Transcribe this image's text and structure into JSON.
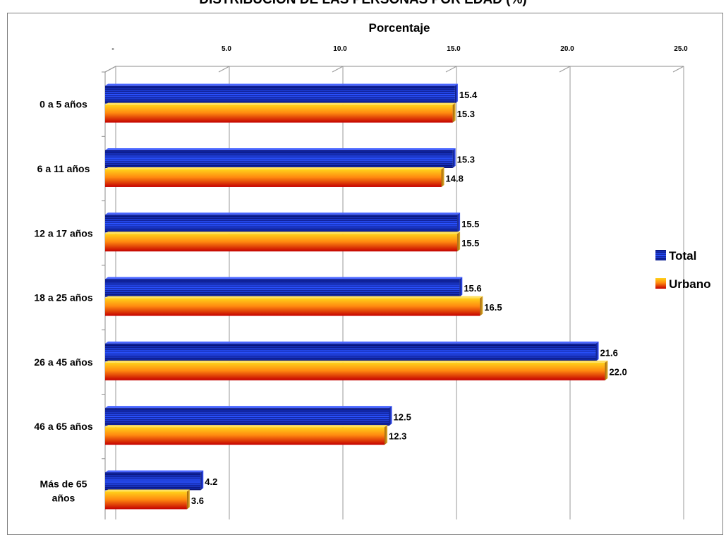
{
  "chart_data": {
    "type": "bar",
    "orientation": "horizontal",
    "style": "3d",
    "title": "DISTRIBUCIÓN DE LAS PERSONAS POR EDAD (%)",
    "xlabel": "Porcentaje",
    "ylabel": "",
    "xlim": [
      0,
      25
    ],
    "x_ticks": [
      "-",
      "5.0",
      "10.0",
      "15.0",
      "20.0",
      "25.0"
    ],
    "grid": true,
    "legend_position": "right",
    "categories": [
      "0 a 5 años",
      "6 a 11 años",
      "12 a 17 años",
      "18 a 25 años",
      "26 a 45 años",
      "46 a 65 años",
      "Más de 65 años"
    ],
    "series": [
      {
        "name": "Total",
        "values": [
          15.4,
          15.3,
          15.5,
          15.6,
          21.6,
          12.5,
          4.2
        ],
        "labels": [
          "15.4",
          "15.3",
          "15.5",
          "15.6",
          "21.6",
          "12.5",
          "4.2"
        ],
        "color": "#1f3fd6"
      },
      {
        "name": "Urbano",
        "values": [
          15.3,
          14.8,
          15.5,
          16.5,
          22.0,
          12.3,
          3.6
        ],
        "labels": [
          "15.3",
          "14.8",
          "15.5",
          "16.5",
          "22.0",
          "12.3",
          "3.6"
        ],
        "color": "#f2561a"
      }
    ]
  }
}
